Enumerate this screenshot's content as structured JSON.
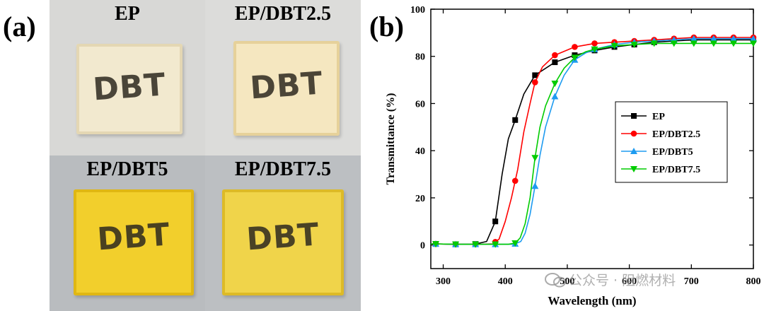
{
  "panels": {
    "a": "(a)",
    "b": "(b)"
  },
  "photos": [
    {
      "name": "EP",
      "text": "DBT",
      "bg": "#d8d8d6",
      "sample": "#f2e9cf",
      "edge": "#e4d7b3"
    },
    {
      "name": "EP/DBT2.5",
      "text": "DBT",
      "bg": "#dcdcda",
      "sample": "#f5e7c0",
      "edge": "#e6d19a"
    },
    {
      "name": "EP/DBT5",
      "text": "DBT",
      "bg": "#b9bcbf",
      "sample": "#f2cf2c",
      "edge": "#e0b713"
    },
    {
      "name": "EP/DBT7.5",
      "text": "DBT",
      "bg": "#bcbfc2",
      "sample": "#f0d44a",
      "edge": "#ddba27"
    }
  ],
  "chart_data": {
    "type": "line",
    "xlabel": "Wavelength (nm)",
    "ylabel": "Transmittance (%)",
    "xlim": [
      280,
      800
    ],
    "ylim": [
      -10,
      100
    ],
    "xticks": [
      300,
      400,
      500,
      600,
      700,
      800
    ],
    "yticks": [
      0,
      20,
      40,
      60,
      80,
      100
    ],
    "series": [
      {
        "name": "EP",
        "color": "#000000",
        "marker": "square",
        "x": [
          280,
          320,
          350,
          370,
          384,
          395,
          405,
          416,
          430,
          448,
          480,
          512,
          544,
          576,
          608,
          640,
          672,
          704,
          736,
          768,
          800
        ],
        "y": [
          0.5,
          0.3,
          0.3,
          1.5,
          10,
          30,
          45,
          53,
          64,
          72,
          77.5,
          80.5,
          82.5,
          84,
          85,
          86,
          86.5,
          87,
          87,
          87,
          87
        ],
        "markers_x": [
          288,
          320,
          352,
          384,
          416,
          448,
          480,
          512,
          544,
          576,
          608,
          640,
          672,
          704,
          736,
          768,
          800
        ]
      },
      {
        "name": "EP/DBT2.5",
        "color": "#ff0000",
        "marker": "circle",
        "x": [
          280,
          320,
          360,
          380,
          390,
          400,
          410,
          420,
          430,
          440,
          448,
          460,
          480,
          512,
          544,
          576,
          608,
          640,
          672,
          704,
          736,
          768,
          800
        ],
        "y": [
          0.5,
          0.3,
          0.3,
          0.5,
          2.5,
          10,
          20,
          32,
          48,
          60,
          69,
          75.5,
          80.5,
          84,
          85.5,
          86,
          86.5,
          87,
          87.5,
          88,
          88,
          88,
          88
        ],
        "markers_x": [
          288,
          320,
          352,
          384,
          416,
          448,
          480,
          512,
          544,
          576,
          608,
          640,
          672,
          704,
          736,
          768,
          800
        ]
      },
      {
        "name": "EP/DBT5",
        "color": "#1e9bf0",
        "marker": "triangle-up",
        "x": [
          280,
          320,
          380,
          410,
          416,
          425,
          432,
          440,
          448,
          456,
          465,
          480,
          495,
          512,
          530,
          544,
          576,
          608,
          640,
          672,
          704,
          736,
          768,
          800
        ],
        "y": [
          0.5,
          0.3,
          0.3,
          0.3,
          0.5,
          1.5,
          5,
          13,
          25,
          38,
          50,
          63,
          72,
          78.5,
          81.5,
          83,
          85,
          86,
          86.5,
          87,
          87.5,
          87.5,
          87.5,
          87.5
        ],
        "markers_x": [
          288,
          320,
          352,
          384,
          416,
          448,
          480,
          512,
          544,
          576,
          608,
          640,
          672,
          704,
          736,
          768,
          800
        ]
      },
      {
        "name": "EP/DBT7.5",
        "color": "#00cc00",
        "marker": "triangle-down",
        "x": [
          280,
          320,
          380,
          405,
          416,
          424,
          432,
          440,
          448,
          456,
          465,
          480,
          495,
          512,
          530,
          544,
          576,
          608,
          640,
          672,
          704,
          736,
          768,
          800
        ],
        "y": [
          0.5,
          0.3,
          0.3,
          0.3,
          0.8,
          3,
          9,
          20,
          37,
          50,
          59,
          68.5,
          75,
          79.5,
          82,
          83,
          84.5,
          85,
          85.5,
          85.5,
          85.5,
          85.5,
          85.5,
          85.5
        ],
        "markers_x": [
          288,
          320,
          352,
          384,
          416,
          448,
          480,
          512,
          544,
          576,
          608,
          640,
          672,
          704,
          736,
          768,
          800
        ]
      }
    ],
    "legend_position": "center-right"
  },
  "watermark": "公众号 · 阻燃材料"
}
